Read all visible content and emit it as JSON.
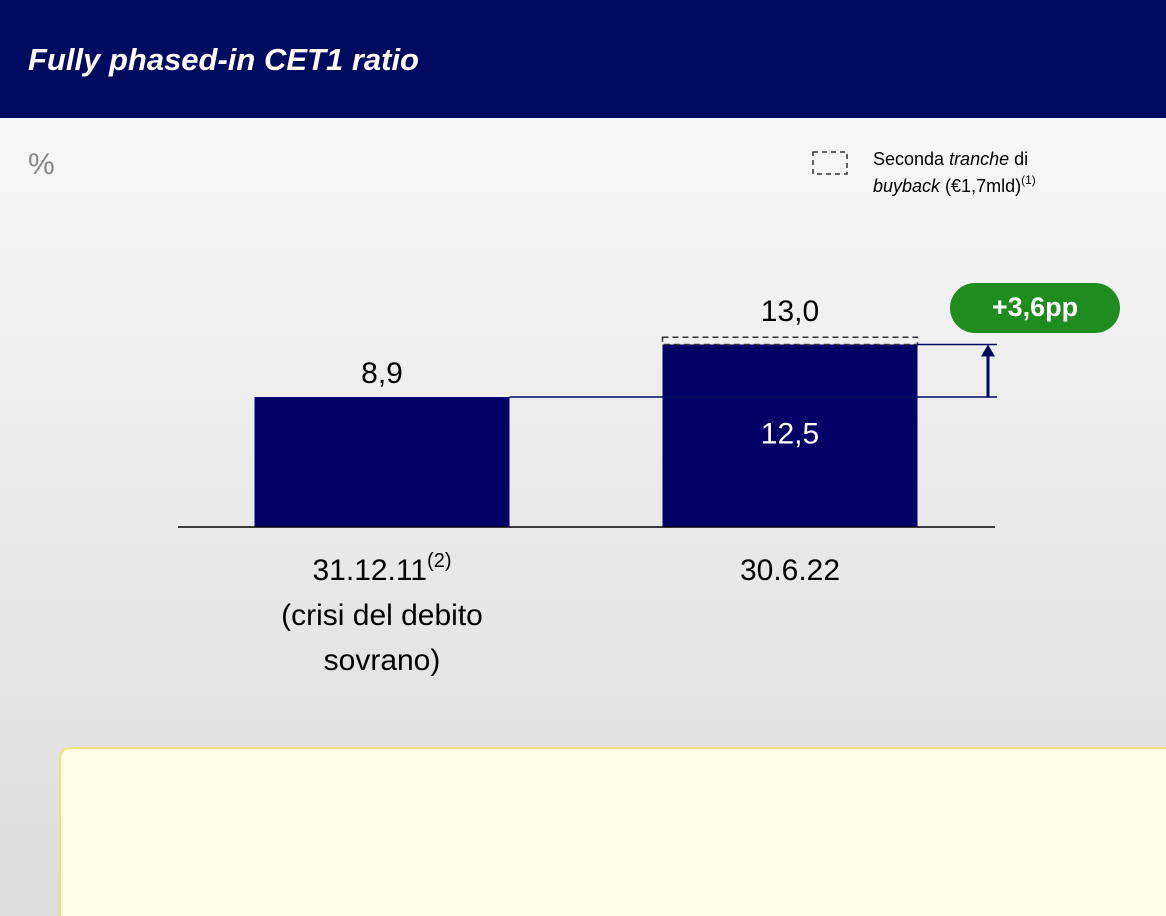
{
  "chart_data": {
    "type": "bar",
    "title": "Fully phased-in CET1 ratio",
    "unit": "%",
    "categories": [
      {
        "label": "31.12.11",
        "note": "(2)",
        "lines": [
          "(crisi del debito",
          "sovrano)"
        ]
      },
      {
        "label": "30.6.22",
        "note": null,
        "lines": []
      }
    ],
    "series": [
      {
        "color": "#000066",
        "values": [
          8.9,
          12.5
        ],
        "value_labels": [
          "8,9",
          "12,5"
        ]
      },
      {
        "color": "none",
        "dashed": true,
        "values": [
          null,
          0.5
        ]
      }
    ],
    "totals": [
      null,
      13.0
    ],
    "total_labels": [
      null,
      "13,0"
    ],
    "legend": {
      "parts": [
        "Seconda ",
        "tranche",
        " di ",
        "buyback",
        " (€1,7mld)",
        "(1)"
      ]
    },
    "annotation": {
      "label": "+3,6pp",
      "value": 3.6,
      "color": "#1e8c1e"
    },
    "ylim": [
      0,
      27
    ]
  }
}
